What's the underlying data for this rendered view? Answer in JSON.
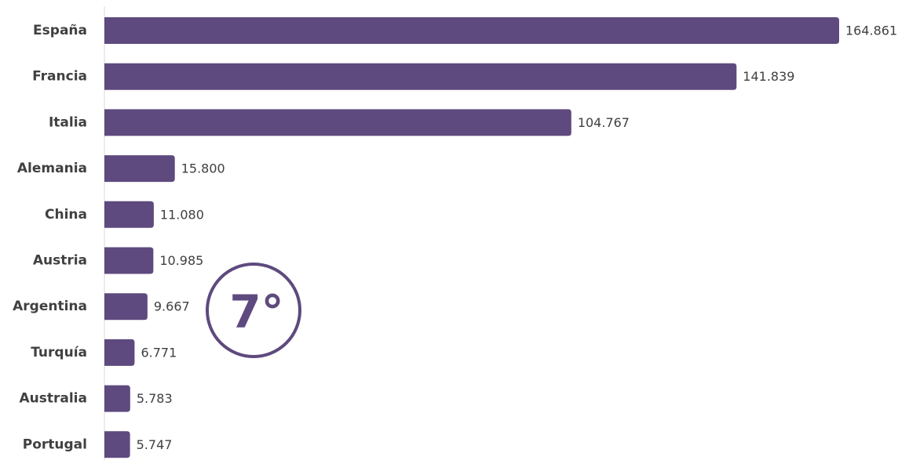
{
  "chart_data": {
    "type": "bar",
    "orientation": "horizontal",
    "title": "",
    "xlabel": "",
    "ylabel": "",
    "categories": [
      "España",
      "Francia",
      "Italia",
      "Alemania",
      "China",
      "Austria",
      "Argentina",
      "Turquía",
      "Australia",
      "Portugal"
    ],
    "values": [
      164861,
      141839,
      104767,
      15800,
      11080,
      10985,
      9667,
      6771,
      5783,
      5747
    ],
    "value_labels": [
      "164.861",
      "141.839",
      "104.767",
      "15.800",
      "11.080",
      "10.985",
      "9.667",
      "6.771",
      "5.783",
      "5.747"
    ],
    "xlim": [
      0,
      164861
    ],
    "grid": false,
    "legend": "none",
    "bar_color": "#5e4a7e",
    "axis_color": "#d9d9d9",
    "label_color": "#404040"
  },
  "badge": {
    "text": "7°",
    "color": "#5e4a7e"
  }
}
